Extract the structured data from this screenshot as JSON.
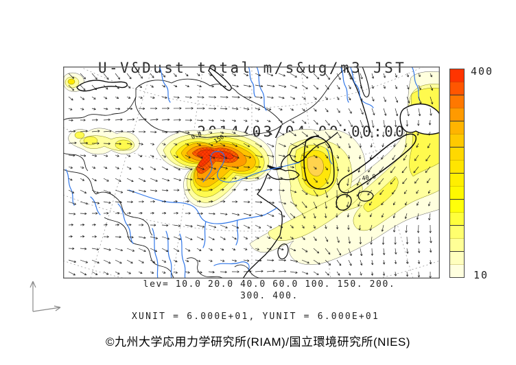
{
  "header": {
    "title_line1": "U-V&Dust total m/s&ug/m3 JST",
    "title_line2": "2014/03/04.00:00:00"
  },
  "colorbar": {
    "max_label": "400",
    "min_label": "10",
    "colors": [
      "#FF3400",
      "#FF5600",
      "#FF7800",
      "#FF9A00",
      "#FFB400",
      "#FFC900",
      "#FFD800",
      "#FFE500",
      "#FFEF00",
      "#FFF800",
      "#FFFF0A",
      "#FFFF3C",
      "#FFFF6E",
      "#FFFF96",
      "#FFFFBE",
      "#FFFFDF"
    ],
    "tick_indices": [
      1,
      3,
      5,
      7,
      9,
      11,
      13
    ]
  },
  "legend": {
    "levels_line1": "lev= 10.0 20.0 40.0 60.0 100. 150. 200.",
    "levels_line2": "300. 400.",
    "units_line": "XUNIT = 6.000E+01, YUNIT = 6.000E+01"
  },
  "map": {
    "contour_labels": [
      {
        "text": "0.0"
      },
      {
        "text": "150."
      },
      {
        "text": "40.0"
      }
    ]
  },
  "footer": {
    "credit": "©九州大学応用力学研究所(RIAM)/国立環境研究所(NIES)"
  },
  "chart_data": {
    "type": "heatmap",
    "subtype": "filled-contour map with wind vector overlay",
    "title": "U-V&Dust total m/s&ug/m3 JST",
    "datetime": "2014/03/04.00:00:00",
    "timezone": "JST",
    "variables": {
      "vectors": "U-V wind (m/s)",
      "fill": "Dust total concentration (ug/m3)"
    },
    "contour_levels": [
      10.0,
      20.0,
      40.0,
      60.0,
      100,
      150,
      200,
      300,
      400
    ],
    "colorbar_range": [
      10,
      400
    ],
    "colorbar_orientation": "vertical-right",
    "vector_scale": {
      "xunit": "6.000E+01",
      "yunit": "6.000E+01"
    },
    "region": "East Asia (China, Mongolia, Korea, Japan)",
    "features": [
      "dust plume core 300-400 ug/m3 over northern China",
      "secondary maximum 100-150 ug/m3 over Korean peninsula / Yellow Sea",
      "40-60 ug/m3 band stretching over Japan to northeast edge",
      "20-40 ug/m3 band over Tarim basin (left of domain)",
      "wind vectors westerly over China turning southward east of Japan"
    ],
    "grid": "dashed gray graticule",
    "credit": "©九州大学応用力学研究所(RIAM)/国立環境研究所(NIES)"
  }
}
